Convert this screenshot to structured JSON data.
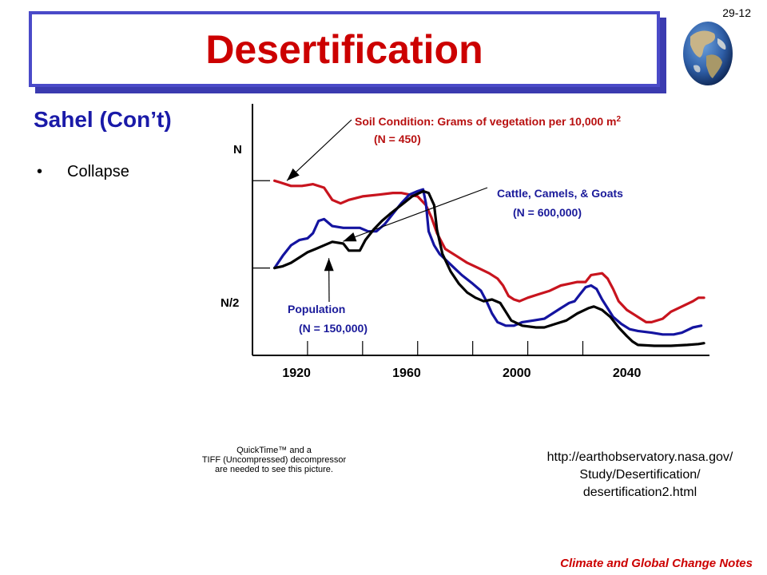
{
  "slide_number": "29-12",
  "title": "Desertification",
  "subtitle": "Sahel (Con’t)",
  "bullets": [
    {
      "marker": "•",
      "text": "Collapse"
    }
  ],
  "globe_icon": "globe-icon",
  "quicktime_placeholder": [
    "QuickTime™ and a",
    "TIFF (Uncompressed) decompressor",
    "are needed to see this picture."
  ],
  "source_url": [
    "http://earthobservatory.nasa.gov/",
    "Study/Desertification/",
    "desertification2.html"
  ],
  "footer": "Climate and Global Change Notes",
  "colors": {
    "title": "#cc0000",
    "subtitle": "#1a1aa8",
    "soil": "#c8141e",
    "cattle": "#1414a0",
    "population": "#000000",
    "annot_red": "#b81010",
    "annot_blue": "#1a1a9a"
  },
  "chart_data": {
    "type": "line",
    "xlim": [
      1904,
      2070
    ],
    "ylim": [
      0,
      1.44
    ],
    "x_ticks": [
      1920,
      1960,
      2000,
      2040
    ],
    "x_minor_ticks": [
      1924,
      1944,
      1964,
      1984,
      2004,
      2024
    ],
    "y_ticks": [
      {
        "label": "N",
        "value": 1.0
      },
      {
        "label": "N/2",
        "value": 0.5
      }
    ],
    "annotations": [
      {
        "lines": [
          "Soil Condition: Grams of vegetation per 10,000 m",
          "(N = 450)"
        ],
        "sup": "2",
        "color": "annot_red",
        "arrow_to": [
          1913,
          1.0
        ]
      },
      {
        "lines": [
          "Cattle, Camels, & Goats",
          "(N = 600,000)"
        ],
        "color": "annot_blue",
        "arrow_to": [
          1934,
          0.68
        ]
      },
      {
        "lines": [
          "Population",
          "(N = 150,000)"
        ],
        "color": "annot_blue",
        "arrow_to": [
          1930,
          0.52
        ]
      }
    ],
    "series": [
      {
        "key": "soil",
        "color": "#c8141e",
        "points": [
          [
            1912,
            1.0
          ],
          [
            1914,
            0.99
          ],
          [
            1918,
            0.97
          ],
          [
            1922,
            0.97
          ],
          [
            1926,
            0.98
          ],
          [
            1930,
            0.96
          ],
          [
            1933,
            0.89
          ],
          [
            1936,
            0.87
          ],
          [
            1939,
            0.89
          ],
          [
            1944,
            0.91
          ],
          [
            1950,
            0.92
          ],
          [
            1955,
            0.93
          ],
          [
            1958,
            0.93
          ],
          [
            1961,
            0.92
          ],
          [
            1964,
            0.91
          ],
          [
            1967,
            0.86
          ],
          [
            1969,
            0.79
          ],
          [
            1971,
            0.7
          ],
          [
            1974,
            0.61
          ],
          [
            1978,
            0.57
          ],
          [
            1982,
            0.53
          ],
          [
            1986,
            0.5
          ],
          [
            1990,
            0.47
          ],
          [
            1993,
            0.44
          ],
          [
            1995,
            0.4
          ],
          [
            1997,
            0.34
          ],
          [
            1999,
            0.32
          ],
          [
            2001,
            0.31
          ],
          [
            2004,
            0.33
          ],
          [
            2008,
            0.35
          ],
          [
            2012,
            0.37
          ],
          [
            2016,
            0.4
          ],
          [
            2019,
            0.41
          ],
          [
            2022,
            0.42
          ],
          [
            2025,
            0.42
          ],
          [
            2027,
            0.46
          ],
          [
            2031,
            0.47
          ],
          [
            2033,
            0.44
          ],
          [
            2035,
            0.38
          ],
          [
            2037,
            0.31
          ],
          [
            2040,
            0.26
          ],
          [
            2043,
            0.23
          ],
          [
            2045,
            0.21
          ],
          [
            2047,
            0.19
          ],
          [
            2049,
            0.19
          ],
          [
            2053,
            0.21
          ],
          [
            2056,
            0.25
          ],
          [
            2060,
            0.28
          ],
          [
            2064,
            0.31
          ],
          [
            2066,
            0.33
          ],
          [
            2068,
            0.33
          ]
        ]
      },
      {
        "key": "cattle",
        "color": "#1414a0",
        "points": [
          [
            1912,
            0.5
          ],
          [
            1915,
            0.57
          ],
          [
            1918,
            0.63
          ],
          [
            1921,
            0.66
          ],
          [
            1924,
            0.67
          ],
          [
            1926,
            0.7
          ],
          [
            1928,
            0.77
          ],
          [
            1930,
            0.78
          ],
          [
            1933,
            0.74
          ],
          [
            1937,
            0.73
          ],
          [
            1943,
            0.73
          ],
          [
            1946,
            0.71
          ],
          [
            1949,
            0.71
          ],
          [
            1952,
            0.75
          ],
          [
            1955,
            0.81
          ],
          [
            1958,
            0.87
          ],
          [
            1961,
            0.92
          ],
          [
            1964,
            0.94
          ],
          [
            1966,
            0.95
          ],
          [
            1967,
            0.87
          ],
          [
            1968,
            0.71
          ],
          [
            1970,
            0.63
          ],
          [
            1972,
            0.58
          ],
          [
            1976,
            0.52
          ],
          [
            1980,
            0.46
          ],
          [
            1984,
            0.41
          ],
          [
            1987,
            0.37
          ],
          [
            1989,
            0.31
          ],
          [
            1991,
            0.24
          ],
          [
            1993,
            0.19
          ],
          [
            1996,
            0.17
          ],
          [
            1999,
            0.17
          ],
          [
            2002,
            0.19
          ],
          [
            2006,
            0.2
          ],
          [
            2010,
            0.21
          ],
          [
            2013,
            0.24
          ],
          [
            2016,
            0.27
          ],
          [
            2019,
            0.3
          ],
          [
            2021,
            0.31
          ],
          [
            2023,
            0.35
          ],
          [
            2025,
            0.39
          ],
          [
            2027,
            0.4
          ],
          [
            2029,
            0.38
          ],
          [
            2031,
            0.32
          ],
          [
            2033,
            0.27
          ],
          [
            2035,
            0.22
          ],
          [
            2038,
            0.18
          ],
          [
            2041,
            0.15
          ],
          [
            2044,
            0.14
          ],
          [
            2049,
            0.13
          ],
          [
            2053,
            0.12
          ],
          [
            2057,
            0.12
          ],
          [
            2060,
            0.13
          ],
          [
            2064,
            0.16
          ],
          [
            2067,
            0.17
          ]
        ]
      },
      {
        "key": "population",
        "color": "#000000",
        "points": [
          [
            1912,
            0.5
          ],
          [
            1915,
            0.51
          ],
          [
            1918,
            0.53
          ],
          [
            1921,
            0.56
          ],
          [
            1924,
            0.59
          ],
          [
            1927,
            0.61
          ],
          [
            1930,
            0.63
          ],
          [
            1933,
            0.65
          ],
          [
            1937,
            0.64
          ],
          [
            1939,
            0.6
          ],
          [
            1943,
            0.6
          ],
          [
            1945,
            0.66
          ],
          [
            1948,
            0.72
          ],
          [
            1951,
            0.77
          ],
          [
            1954,
            0.81
          ],
          [
            1958,
            0.86
          ],
          [
            1962,
            0.91
          ],
          [
            1966,
            0.94
          ],
          [
            1968,
            0.93
          ],
          [
            1970,
            0.86
          ],
          [
            1971,
            0.72
          ],
          [
            1973,
            0.58
          ],
          [
            1976,
            0.48
          ],
          [
            1979,
            0.41
          ],
          [
            1982,
            0.36
          ],
          [
            1985,
            0.33
          ],
          [
            1988,
            0.31
          ],
          [
            1991,
            0.32
          ],
          [
            1994,
            0.3
          ],
          [
            1996,
            0.25
          ],
          [
            1998,
            0.2
          ],
          [
            2002,
            0.17
          ],
          [
            2007,
            0.16
          ],
          [
            2010,
            0.16
          ],
          [
            2014,
            0.18
          ],
          [
            2018,
            0.2
          ],
          [
            2022,
            0.24
          ],
          [
            2026,
            0.27
          ],
          [
            2028,
            0.28
          ],
          [
            2031,
            0.26
          ],
          [
            2034,
            0.22
          ],
          [
            2037,
            0.16
          ],
          [
            2040,
            0.11
          ],
          [
            2042,
            0.08
          ],
          [
            2044,
            0.06
          ],
          [
            2050,
            0.055
          ],
          [
            2056,
            0.055
          ],
          [
            2062,
            0.06
          ],
          [
            2066,
            0.065
          ],
          [
            2068,
            0.07
          ]
        ]
      }
    ]
  }
}
